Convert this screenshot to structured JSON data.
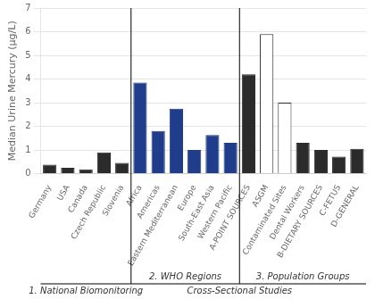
{
  "chart_data": {
    "type": "bar",
    "categories": [
      "Germany",
      "USA",
      "Canada",
      "Czech Republic",
      "Slovenia",
      "Africa",
      "Americas",
      "Eastern Mediterranean",
      "Europe",
      "South-East Asia",
      "Western Pacific",
      "A-POINT SOURCES",
      "ASGM",
      "Contaminated Sites",
      "Dental Workers",
      "B-DIETARY SOURCES",
      "C-FETUS",
      "D-GENERAL"
    ],
    "values": [
      0.38,
      0.25,
      0.18,
      0.9,
      0.45,
      3.85,
      1.8,
      2.75,
      1.0,
      1.63,
      1.3,
      4.2,
      5.9,
      3.0,
      1.3,
      1.0,
      0.72,
      1.05
    ],
    "colors": [
      "#2b2b2b",
      "#2b2b2b",
      "#2b2b2b",
      "#2b2b2b",
      "#2b2b2b",
      "#1f3d8a",
      "#1f3d8a",
      "#1f3d8a",
      "#1f3d8a",
      "#1f3d8a",
      "#1f3d8a",
      "#2b2b2b",
      "white",
      "white",
      "#2b2b2b",
      "#2b2b2b",
      "#2b2b2b",
      "#2b2b2b"
    ],
    "y_label": "Median Urine Mercury (μg/L)",
    "ylim": [
      0,
      7
    ],
    "yticks": [
      0,
      1,
      2,
      3,
      4,
      5,
      6,
      7
    ],
    "grid": true,
    "annotations": [
      "2. WHO Regions",
      "3. Population Groups",
      "1. National Biomonitoring",
      "Cross-Sectional Studies"
    ]
  }
}
